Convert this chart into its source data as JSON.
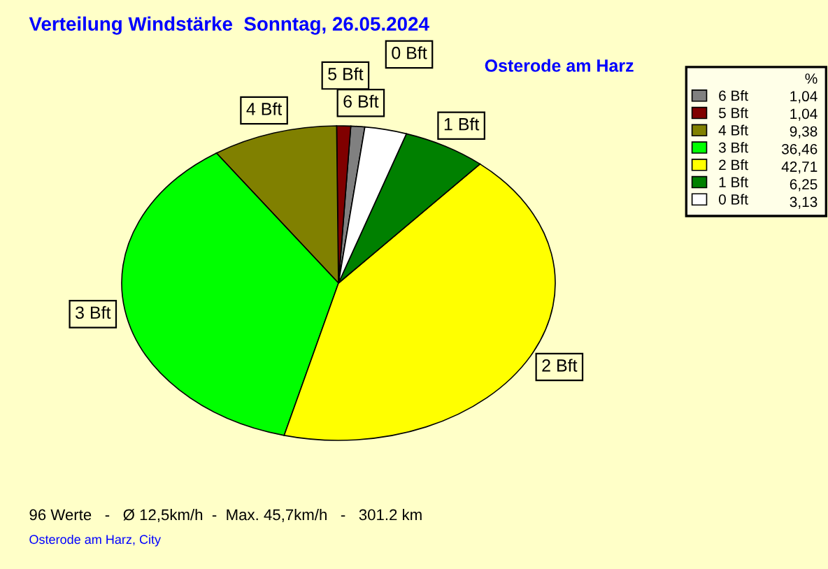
{
  "chart_data": {
    "type": "pie",
    "title": "Verteilung Windstärke  Sonntag, 26.05.2024",
    "subtitle": "Osterode am Harz",
    "legend_title": "%",
    "categories": [
      "6 Bft",
      "5 Bft",
      "4 Bft",
      "3 Bft",
      "2 Bft",
      "1 Bft",
      "0 Bft"
    ],
    "values": [
      1.04,
      1.04,
      9.38,
      36.46,
      42.71,
      6.25,
      3.13
    ],
    "value_labels": [
      "1,04",
      "1,04",
      "9,38",
      "36,46",
      "42,71",
      "6,25",
      "3,13"
    ],
    "colors": [
      "#808080",
      "#800000",
      "#808000",
      "#00ff00",
      "#ffff00",
      "#008000",
      "#ffffff"
    ],
    "legend": "top right",
    "annotations": [
      "96 Werte   -   Ø 12,5km/h  -  Max. 45,7km/h   -   301.2 km",
      "Osterode am Harz, City"
    ]
  }
}
